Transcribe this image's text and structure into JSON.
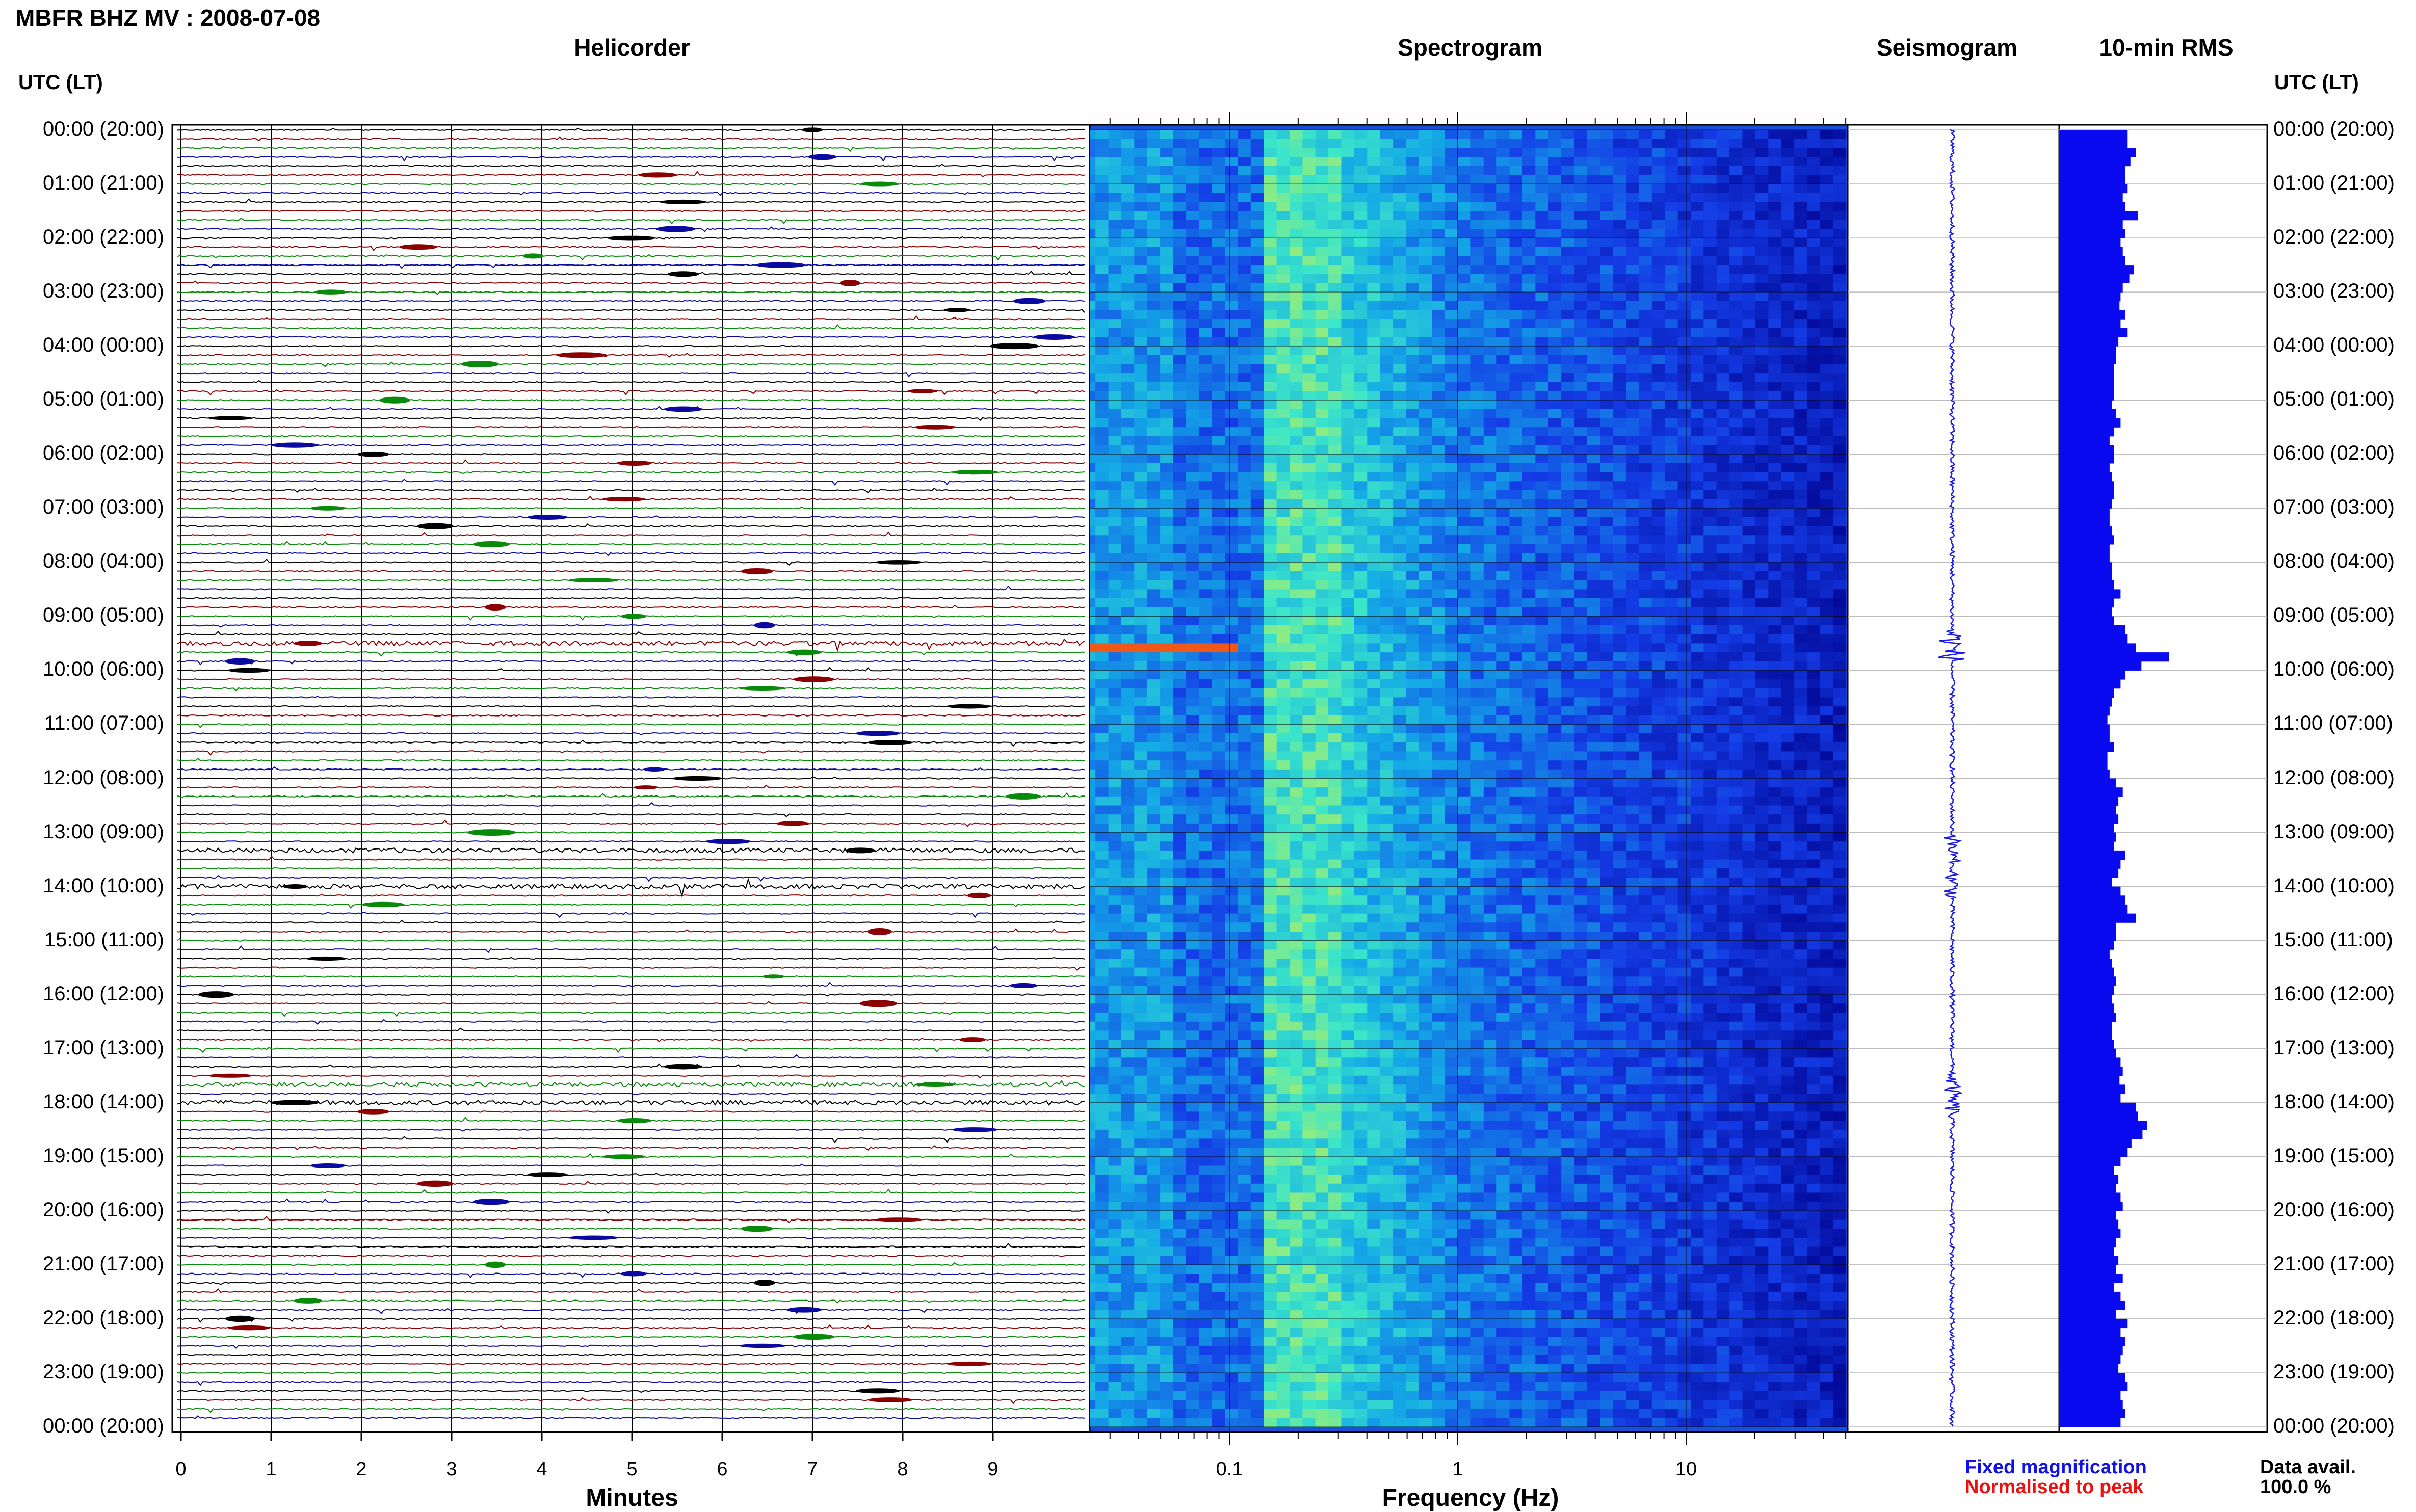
{
  "station_title": "MBFR BHZ MV : 2008-07-08",
  "panel_titles": {
    "helicorder": "Helicorder",
    "spectrogram": "Spectrogram",
    "seismogram": "Seismogram",
    "rms": "10-min RMS"
  },
  "utc_label": "UTC (LT)",
  "hour_labels": [
    "00:00 (20:00)",
    "01:00 (21:00)",
    "02:00 (22:00)",
    "03:00 (23:00)",
    "04:00 (00:00)",
    "05:00 (01:00)",
    "06:00 (02:00)",
    "07:00 (03:00)",
    "08:00 (04:00)",
    "09:00 (05:00)",
    "10:00 (06:00)",
    "11:00 (07:00)",
    "12:00 (08:00)",
    "13:00 (09:00)",
    "14:00 (10:00)",
    "15:00 (11:00)",
    "16:00 (12:00)",
    "17:00 (13:00)",
    "18:00 (14:00)",
    "19:00 (15:00)",
    "20:00 (16:00)",
    "21:00 (17:00)",
    "22:00 (18:00)",
    "23:00 (19:00)",
    "00:00 (20:00)"
  ],
  "minutes_ticks": [
    "0",
    "1",
    "2",
    "3",
    "4",
    "5",
    "6",
    "7",
    "8",
    "9"
  ],
  "frequency_ticks": [
    "0.1",
    "1",
    "10"
  ],
  "minutes_label": "Minutes",
  "frequency_label": "Frequency (Hz)",
  "legend": {
    "fixed": "Fixed magnification",
    "normalised": "Normalised to peak",
    "fixed_color": "#1010ee",
    "normalised_color": "#ee1010"
  },
  "data_availability": {
    "label": "Data avail.",
    "value": "100.0 %"
  },
  "colors": {
    "trace_cycle": [
      "#000000",
      "#8b0000",
      "#0a8a0a",
      "#0a0aa0"
    ],
    "rms_bar": "#0a0af0",
    "seismogram": "#1a1aee"
  },
  "chart_data": [
    {
      "type": "line",
      "name": "helicorder",
      "x_range_minutes": [
        0,
        10
      ],
      "rows": 144,
      "row_minutes": 10,
      "notable_events_hour": [
        9.5,
        13.3,
        14.0,
        17.7,
        18.0
      ]
    },
    {
      "type": "heatmap",
      "name": "spectrogram",
      "x_scale": "log",
      "x_range_hz": [
        0.02,
        50
      ],
      "peak_band_hz": [
        0.15,
        0.3
      ],
      "event_hour": 9.5
    },
    {
      "type": "line",
      "name": "seismogram",
      "orientation": "vertical"
    },
    {
      "type": "bar",
      "name": "10-min RMS",
      "orientation": "horizontal",
      "values": [
        0.62,
        0.62,
        0.7,
        0.65,
        0.6,
        0.6,
        0.62,
        0.58,
        0.6,
        0.72,
        0.58,
        0.6,
        0.56,
        0.58,
        0.6,
        0.68,
        0.64,
        0.58,
        0.56,
        0.55,
        0.6,
        0.56,
        0.62,
        0.54,
        0.52,
        0.52,
        0.5,
        0.5,
        0.5,
        0.5,
        0.48,
        0.52,
        0.56,
        0.5,
        0.46,
        0.5,
        0.5,
        0.46,
        0.48,
        0.5,
        0.5,
        0.48,
        0.46,
        0.46,
        0.48,
        0.5,
        0.46,
        0.46,
        0.48,
        0.48,
        0.5,
        0.56,
        0.5,
        0.48,
        0.5,
        0.6,
        0.62,
        0.7,
        1.0,
        0.75,
        0.6,
        0.56,
        0.5,
        0.48,
        0.46,
        0.44,
        0.46,
        0.46,
        0.5,
        0.44,
        0.44,
        0.46,
        0.52,
        0.58,
        0.54,
        0.52,
        0.54,
        0.5,
        0.52,
        0.5,
        0.6,
        0.56,
        0.54,
        0.48,
        0.56,
        0.6,
        0.62,
        0.7,
        0.52,
        0.52,
        0.5,
        0.46,
        0.48,
        0.5,
        0.52,
        0.5,
        0.48,
        0.5,
        0.52,
        0.48,
        0.48,
        0.5,
        0.52,
        0.56,
        0.58,
        0.55,
        0.6,
        0.56,
        0.7,
        0.72,
        0.8,
        0.76,
        0.66,
        0.62,
        0.56,
        0.5,
        0.54,
        0.52,
        0.56,
        0.58,
        0.52,
        0.54,
        0.56,
        0.52,
        0.5,
        0.54,
        0.52,
        0.58,
        0.5,
        0.56,
        0.6,
        0.52,
        0.62,
        0.56,
        0.6,
        0.58,
        0.56,
        0.54,
        0.6,
        0.62,
        0.56,
        0.58,
        0.6,
        0.56
      ]
    }
  ]
}
